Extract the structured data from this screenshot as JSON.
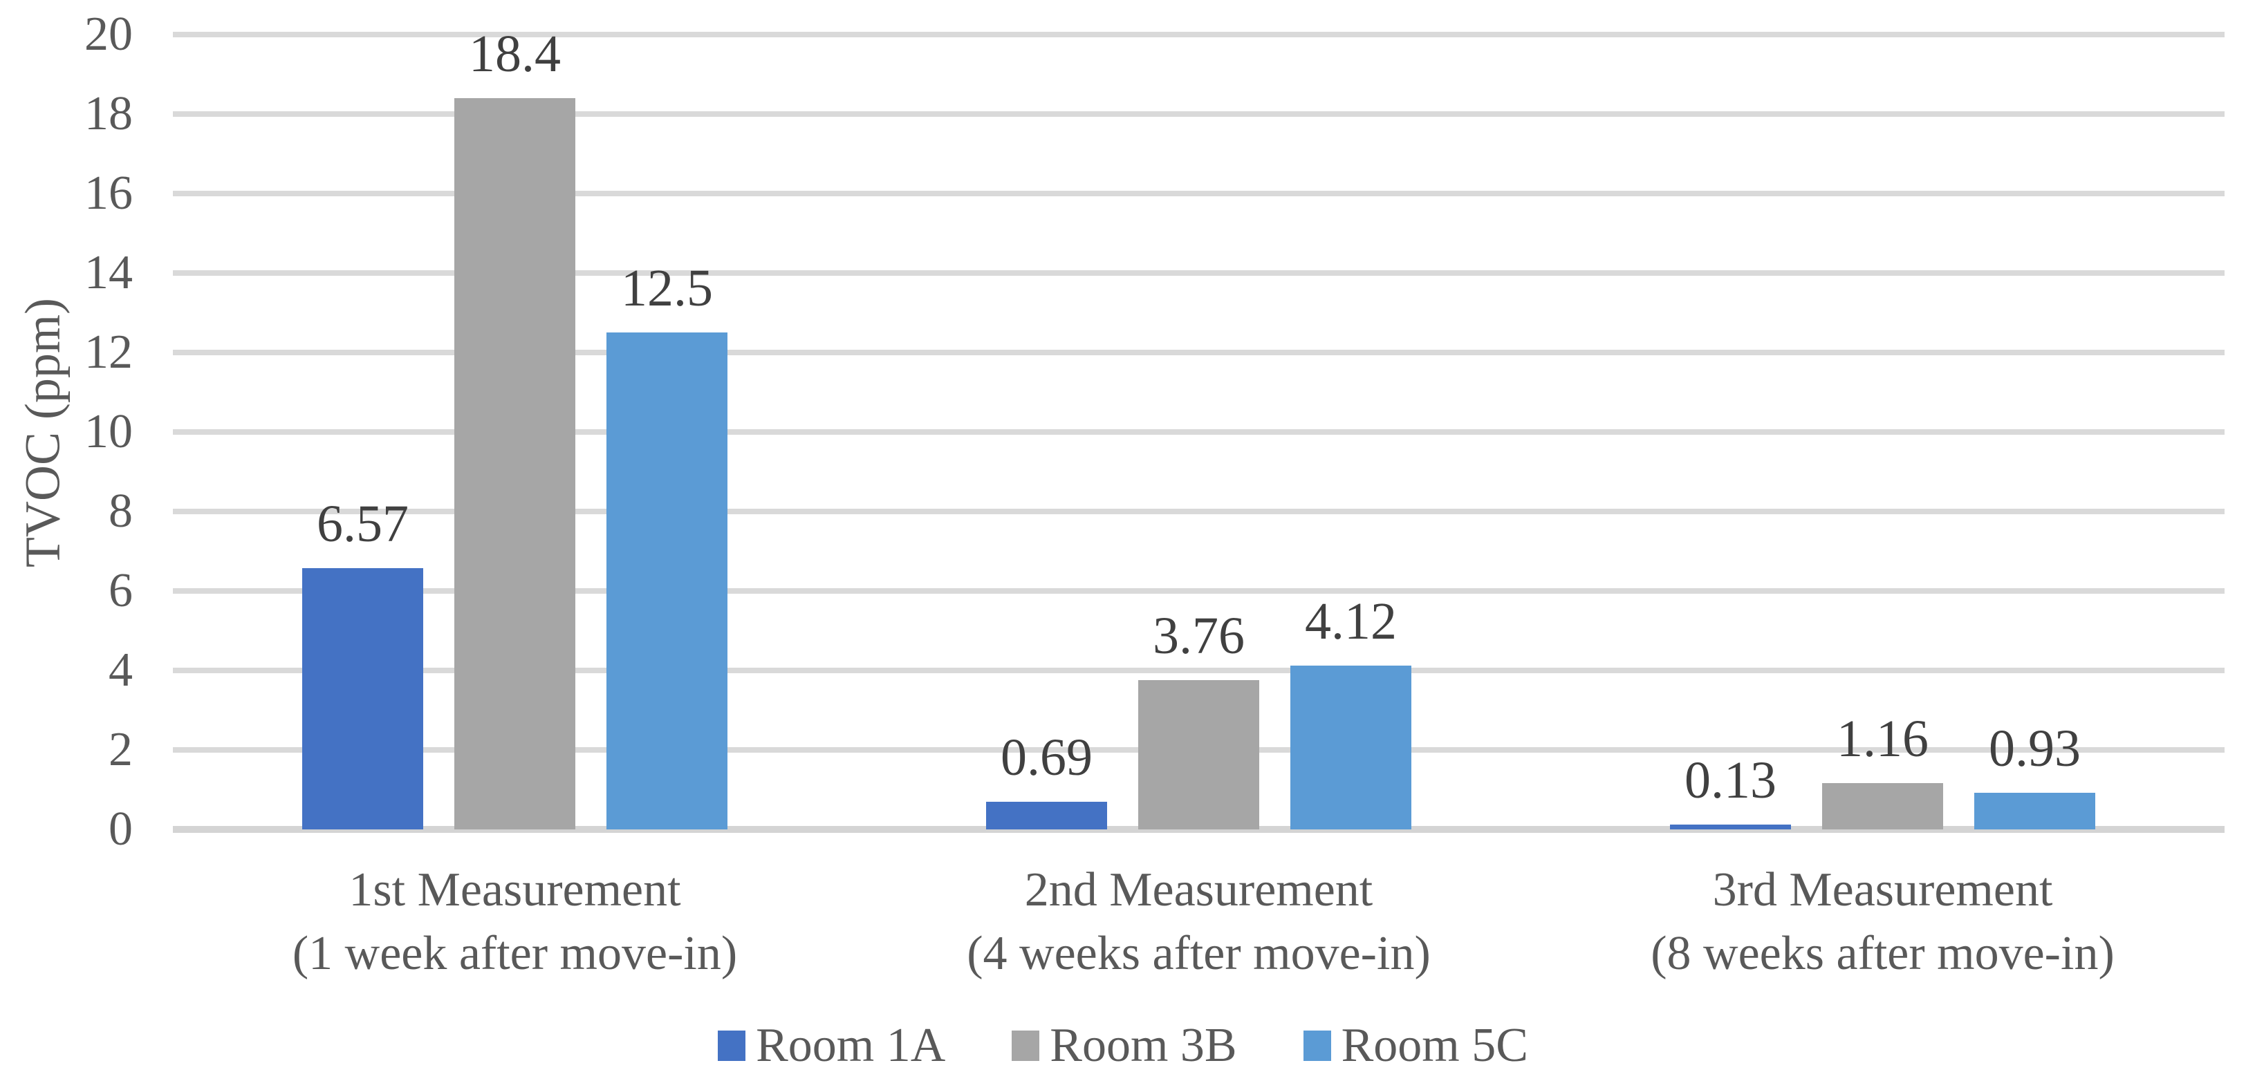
{
  "chart_data": {
    "type": "bar",
    "title": "",
    "ylabel": "TVOC (ppm)",
    "xlabel": "",
    "ylim": [
      0,
      20
    ],
    "ytick_step": 2,
    "yticks": [
      "0",
      "2",
      "4",
      "6",
      "8",
      "10",
      "12",
      "14",
      "16",
      "18",
      "20"
    ],
    "grid": true,
    "legend_position": "bottom",
    "categories": [
      {
        "line1": "1st Measurement",
        "line2": "(1 week after move-in)"
      },
      {
        "line1": "2nd Measurement",
        "line2": "(4 weeks after move-in)"
      },
      {
        "line1": "3rd Measurement",
        "line2": "(8 weeks after move-in)"
      }
    ],
    "series": [
      {
        "name": "Room 1A",
        "color": "#4472C4",
        "values": [
          6.57,
          0.69,
          0.13
        ],
        "labels": [
          "6.57",
          "0.69",
          "0.13"
        ]
      },
      {
        "name": "Room 3B",
        "color": "#A6A6A6",
        "values": [
          18.4,
          3.76,
          1.16
        ],
        "labels": [
          "18.4",
          "3.76",
          "1.16"
        ]
      },
      {
        "name": "Room 5C",
        "color": "#5B9BD5",
        "values": [
          12.5,
          4.12,
          0.93
        ],
        "labels": [
          "12.5",
          "4.12",
          "0.93"
        ]
      }
    ],
    "colors": {
      "background": "#FFFFFF",
      "gridline": "#D9D9D9",
      "axis_line": "#D4D4D4",
      "tick_label": "#595959",
      "category_label": "#595959",
      "data_label": "#404040",
      "legend_label": "#595959"
    }
  }
}
